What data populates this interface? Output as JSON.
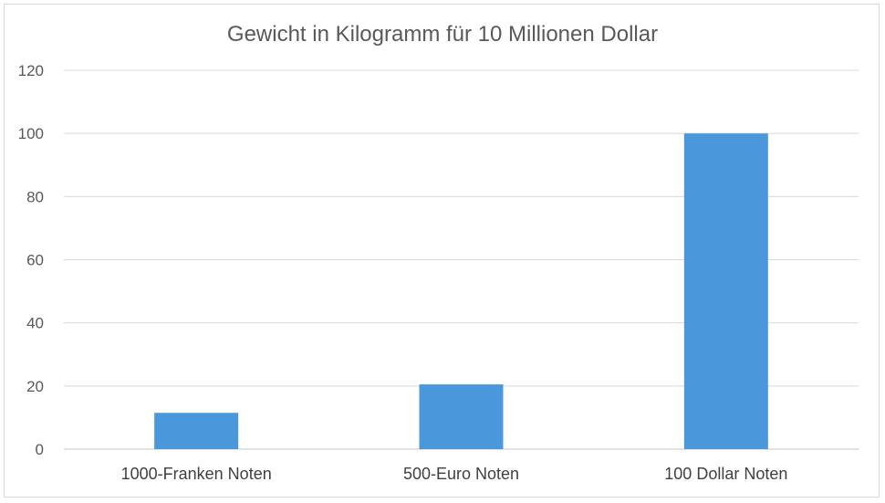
{
  "chart_data": {
    "type": "bar",
    "title": "Gewicht in Kilogramm für 10 Millionen Dollar",
    "xlabel": "",
    "ylabel": "",
    "categories": [
      "1000-Franken Noten",
      "500-Euro Noten",
      "100 Dollar Noten"
    ],
    "values": [
      11.5,
      20.5,
      100
    ],
    "ylim": [
      0,
      120
    ],
    "yticks": [
      0,
      20,
      40,
      60,
      80,
      100,
      120
    ],
    "grid": true,
    "legend": "none",
    "bar_color": "#4a98db",
    "grid_color": "#d9d9d9"
  }
}
